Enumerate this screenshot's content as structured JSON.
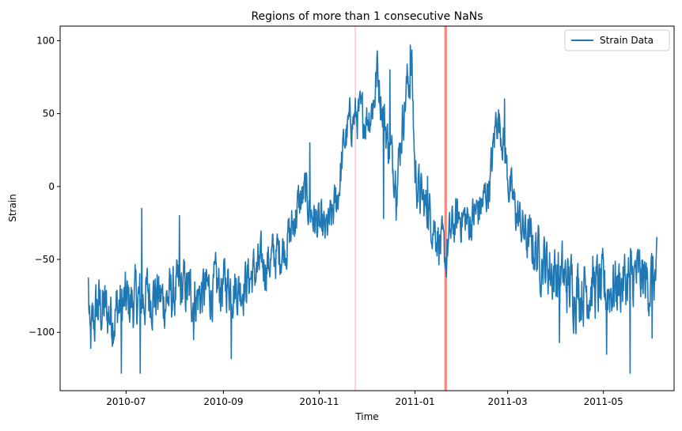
{
  "chart_data": {
    "type": "line",
    "title": "Regions of more than 1 consecutive NaNs",
    "xlabel": "Time",
    "ylabel": "Strain",
    "x_axis_type": "date",
    "xlim": [
      "2010-05-20",
      "2011-06-15"
    ],
    "ylim": [
      -140,
      110
    ],
    "x_ticks": [
      "2010-07",
      "2010-09",
      "2010-11",
      "2011-01",
      "2011-03",
      "2011-05"
    ],
    "y_ticks": [
      -100,
      -50,
      0,
      50,
      100
    ],
    "grid": false,
    "legend": {
      "position": "top-right",
      "entries": [
        "Strain Data"
      ]
    },
    "colors": {
      "series": "#1f77b4",
      "nan_region": "#fa8072"
    },
    "nan_regions": [
      {
        "start": "2010-11-24",
        "end": "2010-11-24",
        "opacity": 0.55
      },
      {
        "start": "2011-01-20",
        "end": "2011-01-21",
        "opacity": 0.95
      }
    ],
    "series": [
      {
        "name": "Strain Data",
        "anchors": [
          [
            "2010-06-07",
            -68
          ],
          [
            "2010-06-08",
            -112
          ],
          [
            "2010-06-10",
            -95
          ],
          [
            "2010-06-13",
            -82
          ],
          [
            "2010-06-17",
            -85
          ],
          [
            "2010-06-22",
            -88
          ],
          [
            "2010-06-27",
            -82
          ],
          [
            "2010-07-03",
            -80
          ],
          [
            "2010-07-10",
            -78
          ],
          [
            "2010-07-17",
            -72
          ],
          [
            "2010-07-24",
            -78
          ],
          [
            "2010-07-31",
            -75
          ],
          [
            "2010-08-07",
            -70
          ],
          [
            "2010-08-14",
            -76
          ],
          [
            "2010-08-21",
            -72
          ],
          [
            "2010-08-28",
            -70
          ],
          [
            "2010-09-04",
            -66
          ],
          [
            "2010-09-11",
            -70
          ],
          [
            "2010-09-18",
            -62
          ],
          [
            "2010-09-25",
            -55
          ],
          [
            "2010-10-02",
            -50
          ],
          [
            "2010-10-09",
            -42
          ],
          [
            "2010-10-14",
            -32
          ],
          [
            "2010-10-18",
            -15
          ],
          [
            "2010-10-23",
            -5
          ],
          [
            "2010-10-27",
            -18
          ],
          [
            "2010-11-01",
            -28
          ],
          [
            "2010-11-05",
            -32
          ],
          [
            "2010-11-09",
            -22
          ],
          [
            "2010-11-13",
            -5
          ],
          [
            "2010-11-17",
            30
          ],
          [
            "2010-11-21",
            45
          ],
          [
            "2010-11-25",
            48
          ],
          [
            "2010-11-29",
            47
          ],
          [
            "2010-12-03",
            50
          ],
          [
            "2010-12-06",
            60
          ],
          [
            "2010-12-08",
            80
          ],
          [
            "2010-12-11",
            55
          ],
          [
            "2010-12-14",
            35
          ],
          [
            "2010-12-18",
            15
          ],
          [
            "2010-12-21",
            10
          ],
          [
            "2010-12-24",
            45
          ],
          [
            "2010-12-27",
            70
          ],
          [
            "2010-12-30",
            80
          ],
          [
            "2011-01-01",
            10
          ],
          [
            "2011-01-04",
            -5
          ],
          [
            "2011-01-08",
            -15
          ],
          [
            "2011-01-12",
            -22
          ],
          [
            "2011-01-16",
            -35
          ],
          [
            "2011-01-20",
            -50
          ],
          [
            "2011-01-25",
            -28
          ],
          [
            "2011-01-30",
            -20
          ],
          [
            "2011-02-04",
            -25
          ],
          [
            "2011-02-09",
            -18
          ],
          [
            "2011-02-14",
            -10
          ],
          [
            "2011-02-18",
            5
          ],
          [
            "2011-02-22",
            50
          ],
          [
            "2011-02-26",
            35
          ],
          [
            "2011-03-02",
            0
          ],
          [
            "2011-03-07",
            -20
          ],
          [
            "2011-03-13",
            -35
          ],
          [
            "2011-03-20",
            -45
          ],
          [
            "2011-03-27",
            -55
          ],
          [
            "2011-04-03",
            -62
          ],
          [
            "2011-04-10",
            -68
          ],
          [
            "2011-04-17",
            -70
          ],
          [
            "2011-04-24",
            -68
          ],
          [
            "2011-05-01",
            -72
          ],
          [
            "2011-05-08",
            -68
          ],
          [
            "2011-05-15",
            -65
          ],
          [
            "2011-05-22",
            -62
          ],
          [
            "2011-05-29",
            -66
          ],
          [
            "2011-06-04",
            -62
          ]
        ],
        "noise_by_period": [
          [
            "2010-06-07",
            18
          ],
          [
            "2010-11-15",
            12
          ],
          [
            "2011-01-01",
            14
          ],
          [
            "2011-03-05",
            12
          ],
          [
            "2011-04-01",
            19
          ],
          [
            "2011-06-04",
            17
          ]
        ],
        "spikes": [
          [
            "2010-06-28",
            -128
          ],
          [
            "2010-07-10",
            -128
          ],
          [
            "2010-07-11",
            -15
          ],
          [
            "2010-08-04",
            -20
          ],
          [
            "2010-08-13",
            -105
          ],
          [
            "2010-09-06",
            -118
          ],
          [
            "2010-10-26",
            30
          ],
          [
            "2010-11-26",
            60
          ],
          [
            "2010-12-08",
            93
          ],
          [
            "2010-12-12",
            -22
          ],
          [
            "2010-12-16",
            80
          ],
          [
            "2010-12-20",
            -23
          ],
          [
            "2010-12-29",
            97
          ],
          [
            "2011-01-09",
            7
          ],
          [
            "2011-01-21",
            -62
          ],
          [
            "2011-02-27",
            60
          ],
          [
            "2011-04-03",
            -107
          ],
          [
            "2011-05-03",
            -115
          ],
          [
            "2011-05-18",
            -128
          ],
          [
            "2011-06-01",
            -104
          ]
        ]
      }
    ]
  }
}
